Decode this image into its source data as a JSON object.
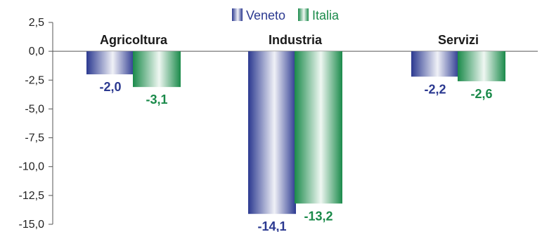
{
  "chart_data": {
    "type": "bar",
    "categories": [
      "Agricoltura",
      "Industria",
      "Servizi"
    ],
    "series": [
      {
        "name": "Veneto",
        "values": [
          -2.0,
          -14.1,
          -2.2
        ],
        "labels": [
          "-2,0",
          "-14,1",
          "-2,2"
        ],
        "color": "#2b3990"
      },
      {
        "name": "Italia",
        "values": [
          -3.1,
          -13.2,
          -2.6
        ],
        "labels": [
          "-3,1",
          "-13,2",
          "-2,6"
        ],
        "color": "#1a8a4a"
      }
    ],
    "y_ticks": [
      2.5,
      0.0,
      -2.5,
      -5.0,
      -7.5,
      -10.0,
      -12.5,
      -15.0
    ],
    "y_tick_labels": [
      "2,5",
      "0,0",
      "-2,5",
      "-5,0",
      "-7,5",
      "-10,0",
      "-12,5",
      "-15,0"
    ],
    "ylim": [
      -15,
      2.5
    ],
    "legend_position": "top-center",
    "grid": false
  }
}
